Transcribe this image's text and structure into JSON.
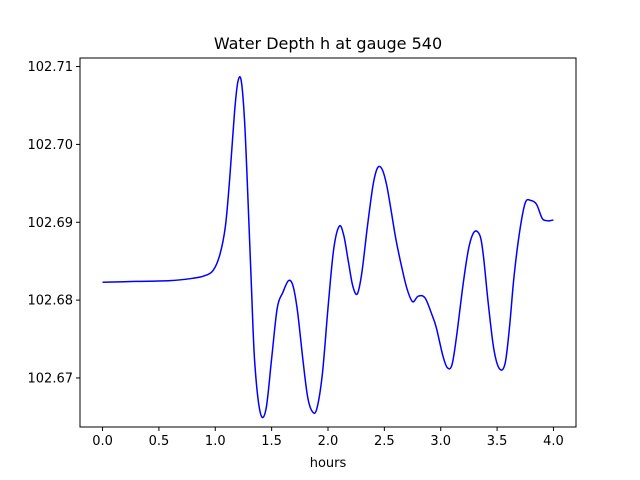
{
  "chart_data": {
    "type": "line",
    "title": "Water Depth h at gauge 540",
    "xlabel": "hours",
    "ylabel": "",
    "xlim": [
      -0.2,
      4.2
    ],
    "ylim": [
      102.6637,
      102.7111
    ],
    "xticks": [
      0.0,
      0.5,
      1.0,
      1.5,
      2.0,
      2.5,
      3.0,
      3.5,
      4.0
    ],
    "xtick_labels": [
      "0.0",
      "0.5",
      "1.0",
      "1.5",
      "2.0",
      "2.5",
      "3.0",
      "3.5",
      "4.0"
    ],
    "yticks": [
      102.67,
      102.68,
      102.69,
      102.7,
      102.71
    ],
    "ytick_labels": [
      "102.67",
      "102.68",
      "102.69",
      "102.70",
      "102.71"
    ],
    "grid": false,
    "series": [
      {
        "color": "#0000ff",
        "x": [
          0.0,
          0.3,
          0.6,
          0.8,
          0.9,
          0.98,
          1.04,
          1.09,
          1.13,
          1.17,
          1.2,
          1.23,
          1.26,
          1.29,
          1.32,
          1.35,
          1.4,
          1.45,
          1.5,
          1.55,
          1.6,
          1.65,
          1.69,
          1.73,
          1.78,
          1.82,
          1.86,
          1.9,
          1.95,
          2.0,
          2.05,
          2.1,
          2.14,
          2.18,
          2.22,
          2.26,
          2.3,
          2.35,
          2.4,
          2.44,
          2.48,
          2.52,
          2.56,
          2.6,
          2.65,
          2.7,
          2.75,
          2.8,
          2.86,
          2.92,
          2.96,
          3.02,
          3.06,
          3.1,
          3.14,
          3.2,
          3.25,
          3.3,
          3.35,
          3.38,
          3.42,
          3.47,
          3.52,
          3.57,
          3.61,
          3.65,
          3.7,
          3.75,
          3.8,
          3.85,
          3.9,
          3.94,
          3.97,
          4.0
        ],
        "y": [
          102.6823,
          102.6824,
          102.6825,
          102.6828,
          102.6831,
          102.6838,
          102.6858,
          102.6895,
          102.696,
          102.704,
          102.708,
          102.7082,
          102.703,
          102.693,
          102.682,
          102.672,
          102.6655,
          102.666,
          102.6725,
          102.679,
          102.681,
          102.6825,
          102.6818,
          102.6785,
          102.672,
          102.6675,
          102.6657,
          102.666,
          102.6705,
          102.679,
          102.6865,
          102.6895,
          102.6883,
          102.685,
          102.6818,
          102.6808,
          102.6835,
          102.6895,
          102.6948,
          102.697,
          102.6968,
          102.6948,
          102.6915,
          102.688,
          102.6845,
          102.6815,
          102.6798,
          102.6805,
          102.6803,
          102.6782,
          102.6765,
          102.6728,
          102.6713,
          102.6717,
          102.6753,
          102.6822,
          102.6868,
          102.6888,
          102.6882,
          102.6855,
          102.6798,
          102.6738,
          102.6712,
          102.6718,
          102.6765,
          102.683,
          102.6888,
          102.6925,
          102.6928,
          102.6923,
          102.6905,
          102.6902,
          102.6902,
          102.6903
        ]
      }
    ]
  }
}
